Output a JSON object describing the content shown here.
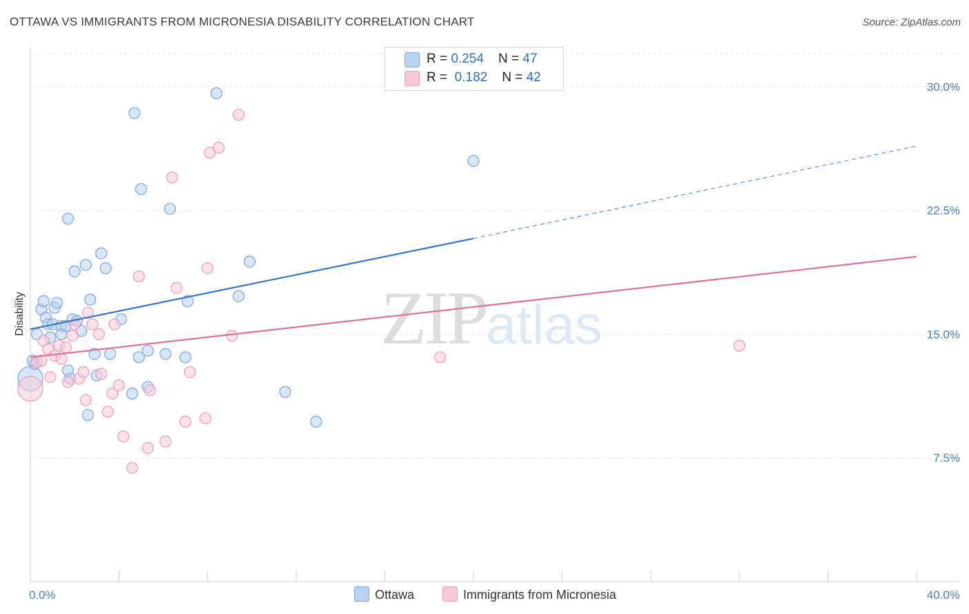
{
  "title": "OTTAWA VS IMMIGRANTS FROM MICRONESIA DISABILITY CORRELATION CHART",
  "source": "Source: ZipAtlas.com",
  "watermark": {
    "zip": "ZIP",
    "atlas": "atlas"
  },
  "legend": {
    "ottawa": {
      "r_label": "R = ",
      "r_value": "0.254",
      "n_label": "N = ",
      "n_value": "47"
    },
    "micronesia": {
      "r_label": "R = ",
      "r_value": "0.182",
      "n_label": "N = ",
      "n_value": "42"
    }
  },
  "bottom_legend": {
    "ottawa": "Ottawa",
    "micronesia": "Immigrants from Micronesia"
  },
  "colors": {
    "ottawa_fill": "#b8d2f0",
    "ottawa_stroke": "#7aa6dc",
    "ottawa_line": "#2f74d0",
    "micronesia_fill": "#f8c8d8",
    "micronesia_stroke": "#ee9ab6",
    "micronesia_line": "#e07098",
    "axis_label": "#4a7fc8",
    "grid": "#e2e2e2"
  },
  "chart_data": {
    "type": "scatter",
    "title": "OTTAWA VS IMMIGRANTS FROM MICRONESIA DISABILITY CORRELATION CHART",
    "xlabel": "",
    "ylabel": "Disability",
    "xlim": [
      0,
      40
    ],
    "ylim": [
      0,
      32
    ],
    "x_tick_labels": [
      "0.0%",
      "40.0%"
    ],
    "y_ticks": [
      7.5,
      15.0,
      22.5,
      30.0
    ],
    "y_tick_labels": [
      "7.5%",
      "15.0%",
      "22.5%",
      "30.0%"
    ],
    "grid": true,
    "legend_position": "top-center",
    "series": [
      {
        "name": "Ottawa",
        "r": 0.254,
        "n": 47,
        "trend": {
          "x0": 0,
          "y0": 15.3,
          "x1": 20,
          "y1": 20.8,
          "dashed_to_x": 40,
          "dashed_to_y": 26.4
        },
        "points": [
          [
            0.0,
            12.3,
            30
          ],
          [
            0.2,
            13.2,
            10
          ],
          [
            0.3,
            15.0,
            10
          ],
          [
            0.5,
            16.5,
            10
          ],
          [
            0.6,
            17.0,
            10
          ],
          [
            0.7,
            16.0,
            10
          ],
          [
            0.8,
            15.6,
            10
          ],
          [
            0.9,
            14.8,
            10
          ],
          [
            1.0,
            15.6,
            10
          ],
          [
            1.1,
            16.6,
            10
          ],
          [
            1.2,
            16.9,
            10
          ],
          [
            1.4,
            15.5,
            10
          ],
          [
            1.4,
            15.0,
            10
          ],
          [
            1.6,
            15.5,
            10
          ],
          [
            1.7,
            12.8,
            10
          ],
          [
            1.7,
            22.0,
            10
          ],
          [
            1.8,
            12.3,
            10
          ],
          [
            1.9,
            15.9,
            10
          ],
          [
            2.0,
            18.8,
            10
          ],
          [
            2.1,
            15.8,
            10
          ],
          [
            2.3,
            15.2,
            10
          ],
          [
            2.5,
            19.2,
            10
          ],
          [
            2.6,
            10.1,
            10
          ],
          [
            2.7,
            17.1,
            10
          ],
          [
            2.9,
            13.8,
            10
          ],
          [
            3.0,
            12.5,
            10
          ],
          [
            3.2,
            19.9,
            10
          ],
          [
            3.4,
            19.0,
            10
          ],
          [
            3.6,
            13.8,
            10
          ],
          [
            4.1,
            15.9,
            10
          ],
          [
            4.6,
            11.4,
            10
          ],
          [
            4.7,
            28.4,
            10
          ],
          [
            4.9,
            13.6,
            10
          ],
          [
            5.0,
            23.8,
            10
          ],
          [
            5.3,
            14.0,
            10
          ],
          [
            5.3,
            11.8,
            10
          ],
          [
            6.1,
            13.8,
            10
          ],
          [
            6.3,
            22.6,
            10
          ],
          [
            7.0,
            13.6,
            10
          ],
          [
            7.1,
            17.0,
            10
          ],
          [
            8.4,
            29.6,
            10
          ],
          [
            9.4,
            17.3,
            10
          ],
          [
            9.9,
            19.4,
            10
          ],
          [
            11.5,
            11.5,
            10
          ],
          [
            12.9,
            9.7,
            10
          ],
          [
            20.0,
            25.5,
            10
          ],
          [
            0.1,
            13.4,
            10
          ]
        ]
      },
      {
        "name": "Immigrants from Micronesia",
        "r": 0.182,
        "n": 42,
        "trend": {
          "x0": 0,
          "y0": 13.6,
          "x1": 40,
          "y1": 19.7
        },
        "points": [
          [
            0.0,
            11.7,
            30
          ],
          [
            0.3,
            13.3,
            10
          ],
          [
            0.5,
            13.4,
            10
          ],
          [
            0.6,
            14.6,
            10
          ],
          [
            0.8,
            14.1,
            10
          ],
          [
            0.9,
            12.4,
            10
          ],
          [
            1.1,
            13.7,
            10
          ],
          [
            1.3,
            14.3,
            10
          ],
          [
            1.4,
            13.5,
            10
          ],
          [
            1.6,
            14.2,
            10
          ],
          [
            1.7,
            12.1,
            10
          ],
          [
            1.9,
            14.9,
            10
          ],
          [
            2.0,
            15.6,
            10
          ],
          [
            2.2,
            12.3,
            10
          ],
          [
            2.4,
            12.7,
            10
          ],
          [
            2.5,
            11.0,
            10
          ],
          [
            2.6,
            16.3,
            10
          ],
          [
            2.8,
            15.6,
            10
          ],
          [
            3.1,
            15.0,
            10
          ],
          [
            3.2,
            12.6,
            10
          ],
          [
            3.5,
            10.3,
            10
          ],
          [
            3.7,
            11.4,
            10
          ],
          [
            3.8,
            15.6,
            10
          ],
          [
            4.0,
            11.9,
            10
          ],
          [
            4.2,
            8.8,
            10
          ],
          [
            4.6,
            6.9,
            10
          ],
          [
            4.9,
            18.5,
            10
          ],
          [
            5.3,
            8.1,
            10
          ],
          [
            5.4,
            11.6,
            10
          ],
          [
            6.1,
            8.5,
            10
          ],
          [
            6.4,
            24.5,
            10
          ],
          [
            6.6,
            17.8,
            10
          ],
          [
            7.0,
            9.7,
            10
          ],
          [
            7.2,
            12.7,
            10
          ],
          [
            7.9,
            9.9,
            10
          ],
          [
            8.0,
            19.0,
            10
          ],
          [
            8.1,
            26.0,
            10
          ],
          [
            8.5,
            26.3,
            10
          ],
          [
            9.1,
            14.9,
            10
          ],
          [
            9.4,
            28.3,
            10
          ],
          [
            18.5,
            13.6,
            10
          ],
          [
            32.0,
            14.3,
            10
          ]
        ]
      }
    ]
  }
}
